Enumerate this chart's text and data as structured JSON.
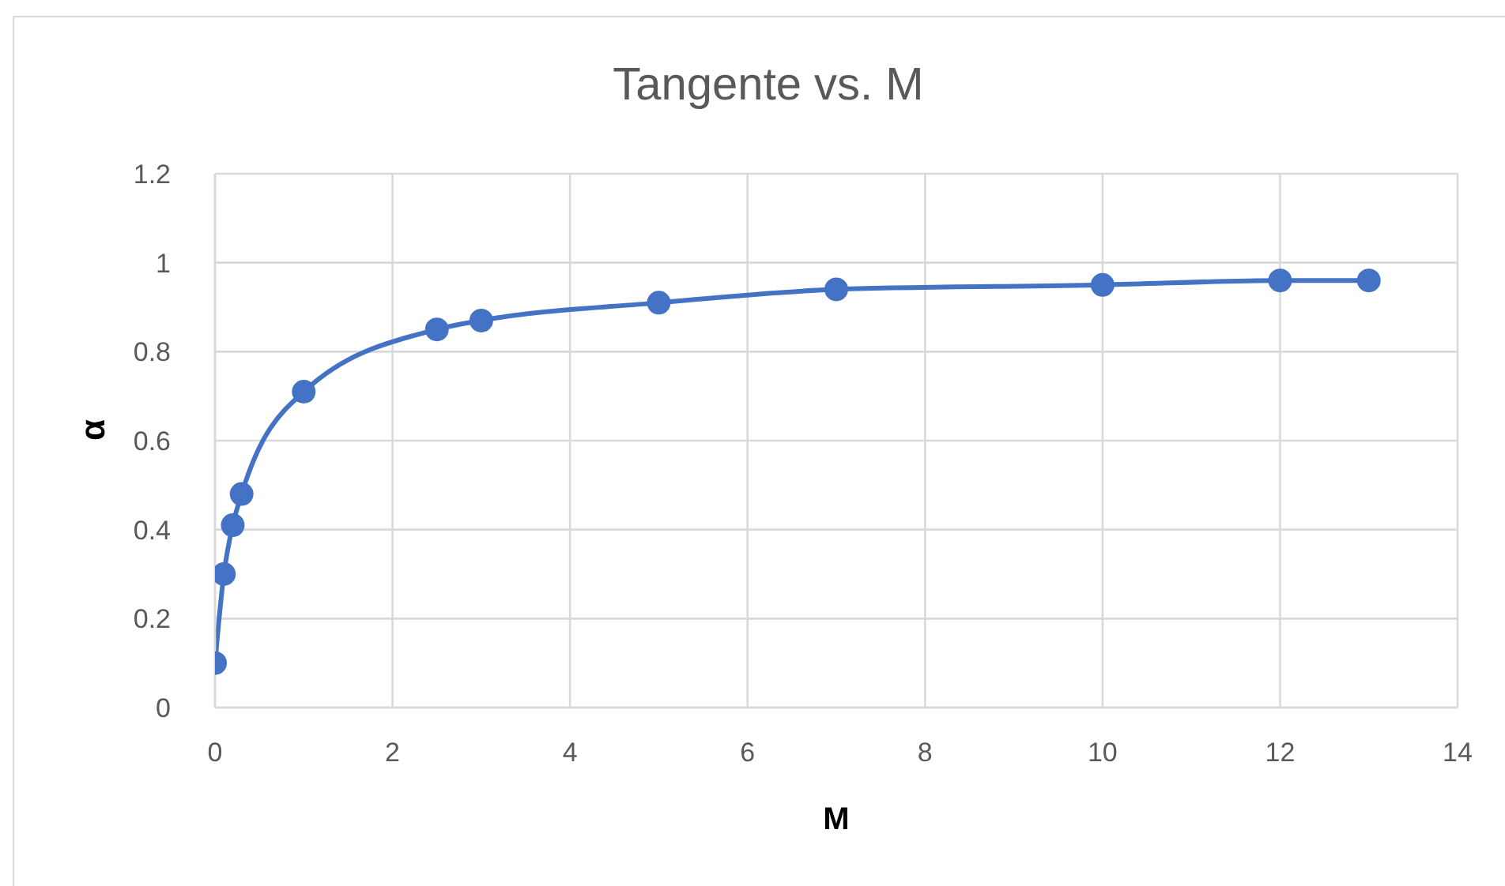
{
  "chart_data": {
    "type": "line",
    "title": "Tangente vs. M",
    "xlabel": "M",
    "ylabel": "α",
    "x": [
      0,
      0.1,
      0.2,
      0.3,
      1,
      2.5,
      3,
      5,
      7,
      10,
      12,
      13
    ],
    "series": [
      {
        "color": "#4472c4",
        "values": [
          0.1,
          0.3,
          0.41,
          0.48,
          0.71,
          0.85,
          0.87,
          0.91,
          0.94,
          0.95,
          0.96,
          0.96
        ]
      }
    ],
    "xlim": [
      0,
      14
    ],
    "xticks": [
      0,
      2,
      4,
      6,
      8,
      10,
      12,
      14
    ],
    "ylim": [
      0,
      1.2
    ],
    "yticks": [
      0,
      0.2,
      0.4,
      0.6,
      0.8,
      1,
      1.2
    ],
    "grid": true,
    "marker": "circle",
    "line_style": "solid"
  }
}
